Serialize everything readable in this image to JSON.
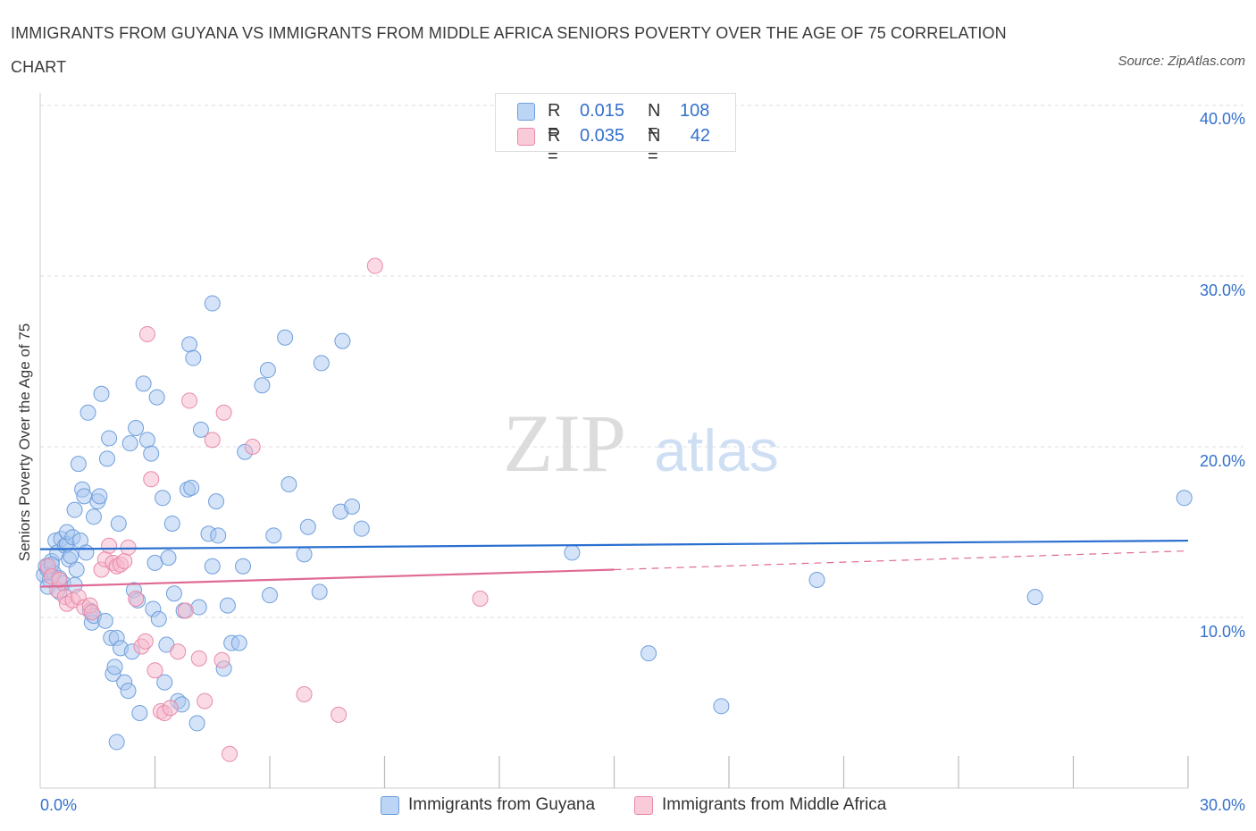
{
  "title": "IMMIGRANTS FROM GUYANA VS IMMIGRANTS FROM MIDDLE AFRICA SENIORS POVERTY OVER THE AGE OF 75 CORRELATION CHART",
  "source": "Source: ZipAtlas.com",
  "watermark": {
    "zip": "ZIP",
    "atlas": "atlas"
  },
  "legend_top": {
    "rows": [
      {
        "r_label": "R =",
        "r_value": "0.015",
        "n_label": "N =",
        "n_value": "108"
      },
      {
        "r_label": "R =",
        "r_value": "0.035",
        "n_label": "N =",
        "n_value": "42"
      }
    ]
  },
  "legend_bottom": [
    {
      "label": "Immigrants from Guyana"
    },
    {
      "label": "Immigrants from Middle Africa"
    }
  ],
  "colors": {
    "guyana_fill": "#a9c8f0",
    "guyana_stroke": "#6f9fdd",
    "guyana_line": "#2a6fd0",
    "africa_fill": "#f5b8cb",
    "africa_stroke": "#e88aa8",
    "africa_line": "#e06a96",
    "axis_text": "#3370cc",
    "grid": "#dddddd"
  },
  "chart_data": {
    "type": "scatter",
    "title": "IMMIGRANTS FROM GUYANA VS IMMIGRANTS FROM MIDDLE AFRICA SENIORS POVERTY OVER THE AGE OF 75 CORRELATION CHART",
    "xlabel": "",
    "ylabel": "Seniors Poverty Over the Age of 75",
    "xlim": [
      0,
      30
    ],
    "ylim": [
      0,
      40
    ],
    "x_tick_labels": [
      "0.0%",
      "30.0%"
    ],
    "y_ticks": [
      10,
      20,
      30,
      40
    ],
    "y_tick_labels": [
      "10.0%",
      "20.0%",
      "30.0%",
      "40.0%"
    ],
    "series": [
      {
        "name": "Immigrants from Guyana",
        "r": 0.015,
        "n": 108,
        "trend": {
          "x": [
            0,
            30
          ],
          "y": [
            14.0,
            14.5
          ],
          "dashed_from": null
        },
        "points": [
          [
            0.1,
            12.5
          ],
          [
            0.15,
            13.0
          ],
          [
            0.2,
            12.8
          ],
          [
            0.25,
            12.2
          ],
          [
            0.3,
            13.3
          ],
          [
            0.2,
            11.8
          ],
          [
            0.35,
            12.6
          ],
          [
            0.4,
            14.5
          ],
          [
            0.45,
            13.8
          ],
          [
            0.5,
            11.5
          ],
          [
            0.55,
            14.6
          ],
          [
            0.6,
            12.0
          ],
          [
            0.65,
            14.2
          ],
          [
            0.7,
            14.3
          ],
          [
            0.75,
            13.4
          ],
          [
            0.7,
            15.0
          ],
          [
            0.8,
            13.6
          ],
          [
            0.85,
            14.7
          ],
          [
            0.9,
            11.9
          ],
          [
            0.95,
            12.8
          ],
          [
            0.9,
            16.3
          ],
          [
            1.0,
            19.0
          ],
          [
            1.05,
            14.5
          ],
          [
            1.1,
            17.5
          ],
          [
            1.15,
            17.1
          ],
          [
            1.2,
            13.8
          ],
          [
            1.25,
            22.0
          ],
          [
            1.3,
            10.4
          ],
          [
            1.35,
            9.7
          ],
          [
            1.4,
            10.1
          ],
          [
            1.4,
            15.9
          ],
          [
            1.5,
            16.8
          ],
          [
            1.55,
            17.1
          ],
          [
            1.6,
            23.1
          ],
          [
            1.7,
            9.8
          ],
          [
            1.75,
            19.3
          ],
          [
            1.8,
            20.5
          ],
          [
            1.85,
            8.8
          ],
          [
            1.9,
            6.7
          ],
          [
            1.95,
            7.1
          ],
          [
            2.0,
            8.8
          ],
          [
            2.0,
            2.7
          ],
          [
            2.05,
            15.5
          ],
          [
            2.1,
            8.2
          ],
          [
            2.2,
            6.2
          ],
          [
            2.3,
            5.7
          ],
          [
            2.35,
            20.2
          ],
          [
            2.4,
            8.0
          ],
          [
            2.45,
            11.6
          ],
          [
            2.5,
            21.1
          ],
          [
            2.55,
            11.0
          ],
          [
            2.6,
            4.4
          ],
          [
            2.7,
            23.7
          ],
          [
            2.8,
            20.4
          ],
          [
            2.9,
            19.6
          ],
          [
            2.95,
            10.5
          ],
          [
            3.0,
            13.2
          ],
          [
            3.05,
            22.9
          ],
          [
            3.1,
            9.9
          ],
          [
            3.2,
            17.0
          ],
          [
            3.25,
            6.2
          ],
          [
            3.3,
            8.4
          ],
          [
            3.35,
            13.5
          ],
          [
            3.45,
            15.5
          ],
          [
            3.5,
            11.4
          ],
          [
            3.6,
            5.1
          ],
          [
            3.7,
            4.9
          ],
          [
            3.75,
            10.4
          ],
          [
            3.85,
            17.5
          ],
          [
            3.9,
            26.0
          ],
          [
            3.95,
            17.6
          ],
          [
            4.0,
            25.2
          ],
          [
            4.1,
            3.8
          ],
          [
            4.15,
            10.6
          ],
          [
            4.2,
            21.0
          ],
          [
            4.4,
            14.9
          ],
          [
            4.5,
            28.4
          ],
          [
            4.5,
            13.0
          ],
          [
            4.6,
            16.8
          ],
          [
            4.65,
            14.8
          ],
          [
            4.8,
            7.0
          ],
          [
            4.9,
            10.7
          ],
          [
            5.0,
            8.5
          ],
          [
            5.2,
            8.5
          ],
          [
            5.3,
            13.0
          ],
          [
            5.35,
            19.7
          ],
          [
            5.8,
            23.6
          ],
          [
            5.95,
            24.5
          ],
          [
            6.0,
            11.3
          ],
          [
            6.1,
            14.8
          ],
          [
            6.4,
            26.4
          ],
          [
            6.5,
            17.8
          ],
          [
            6.9,
            13.7
          ],
          [
            7.0,
            15.3
          ],
          [
            7.3,
            11.5
          ],
          [
            7.35,
            24.9
          ],
          [
            7.85,
            16.2
          ],
          [
            7.9,
            26.2
          ],
          [
            8.15,
            16.5
          ],
          [
            8.4,
            15.2
          ],
          [
            13.9,
            13.8
          ],
          [
            15.9,
            7.9
          ],
          [
            17.8,
            4.8
          ],
          [
            20.3,
            12.2
          ],
          [
            26.0,
            11.2
          ],
          [
            29.9,
            17.0
          ],
          [
            0.3,
            13.1
          ],
          [
            0.5,
            12.3
          ]
        ]
      },
      {
        "name": "Immigrants from Middle Africa",
        "r": 0.035,
        "n": 42,
        "trend": {
          "x": [
            0,
            15,
            30
          ],
          "y": [
            11.8,
            12.8,
            13.9
          ],
          "dashed_from": 15
        },
        "points": [
          [
            0.2,
            13.0
          ],
          [
            0.3,
            12.4
          ],
          [
            0.45,
            11.6
          ],
          [
            0.5,
            12.2
          ],
          [
            0.65,
            11.2
          ],
          [
            0.7,
            10.8
          ],
          [
            0.85,
            11.0
          ],
          [
            1.0,
            11.2
          ],
          [
            1.15,
            10.6
          ],
          [
            1.3,
            10.7
          ],
          [
            1.35,
            10.3
          ],
          [
            1.6,
            12.8
          ],
          [
            1.7,
            13.4
          ],
          [
            1.8,
            14.2
          ],
          [
            1.9,
            13.2
          ],
          [
            2.0,
            13.0
          ],
          [
            2.1,
            13.1
          ],
          [
            2.2,
            13.3
          ],
          [
            2.3,
            14.1
          ],
          [
            2.5,
            11.1
          ],
          [
            2.65,
            8.3
          ],
          [
            2.75,
            8.6
          ],
          [
            2.8,
            26.6
          ],
          [
            2.9,
            18.1
          ],
          [
            3.0,
            6.9
          ],
          [
            3.15,
            4.5
          ],
          [
            3.25,
            4.4
          ],
          [
            3.4,
            4.7
          ],
          [
            3.6,
            8.0
          ],
          [
            3.8,
            10.4
          ],
          [
            3.9,
            22.7
          ],
          [
            4.15,
            7.6
          ],
          [
            4.3,
            5.1
          ],
          [
            4.5,
            20.4
          ],
          [
            4.75,
            7.5
          ],
          [
            4.8,
            22.0
          ],
          [
            4.95,
            2.0
          ],
          [
            5.55,
            20.0
          ],
          [
            6.9,
            5.5
          ],
          [
            7.8,
            4.3
          ],
          [
            8.75,
            30.6
          ],
          [
            11.5,
            11.1
          ]
        ]
      }
    ]
  },
  "ylabel": "Seniors Poverty Over the Age of 75"
}
